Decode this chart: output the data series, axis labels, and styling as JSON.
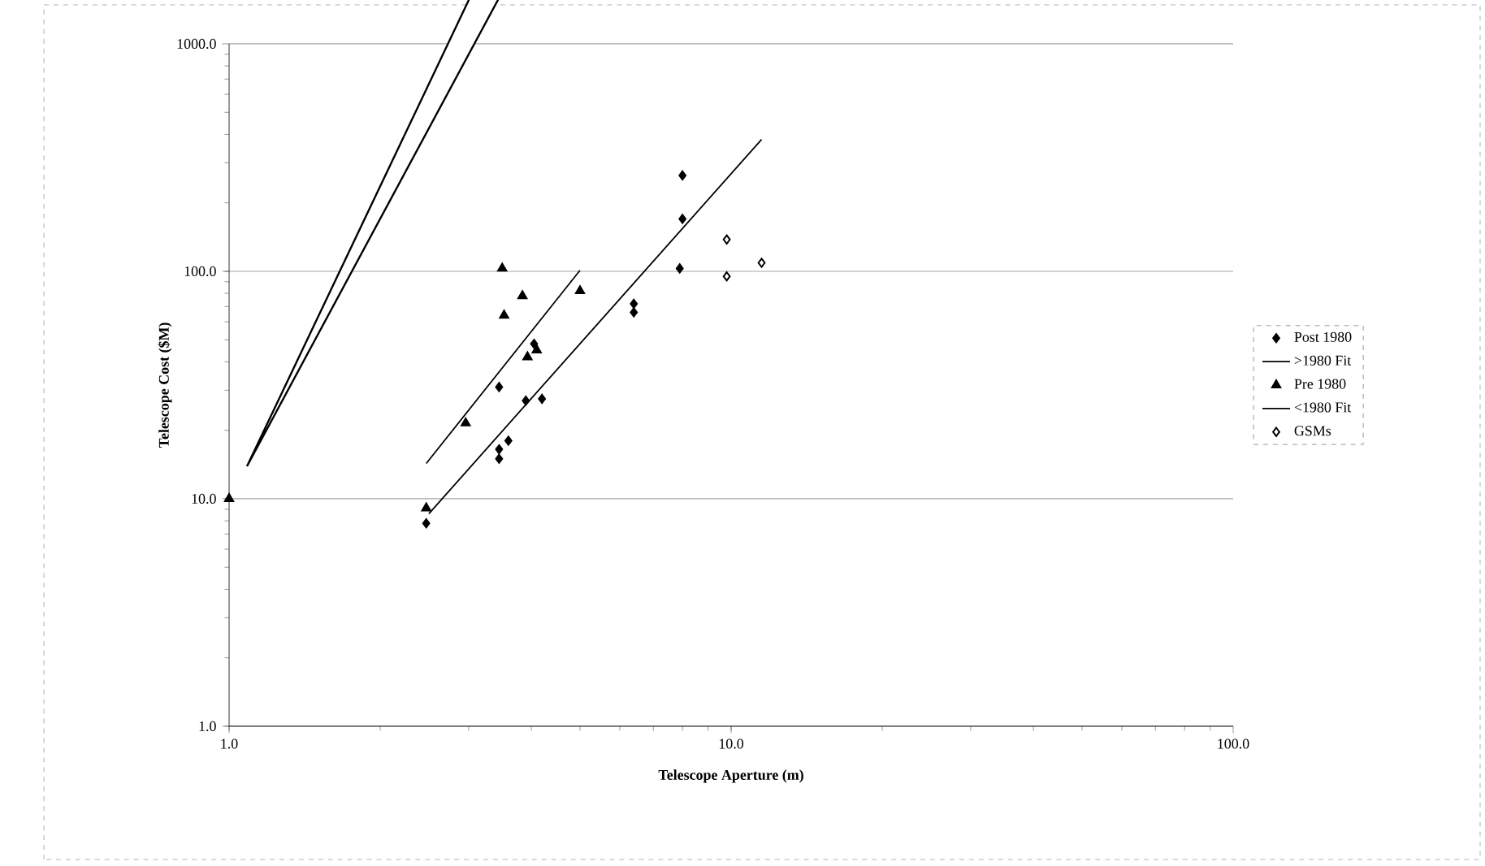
{
  "chart_data": {
    "type": "scatter",
    "xlabel": "Telescope Aperture (m)",
    "ylabel": "Telescope Cost ($M)",
    "log": "xy",
    "grid": "y",
    "legend": "right",
    "xlim": [
      1,
      100
    ],
    "ylim": [
      1,
      1000
    ],
    "xticks": [
      {
        "value": 1,
        "label": "1.0"
      },
      {
        "value": 10,
        "label": "10.0"
      },
      {
        "value": 100,
        "label": "100.0"
      }
    ],
    "yticks": [
      {
        "value": 1,
        "label": "1.0"
      },
      {
        "value": 10,
        "label": "10.0"
      },
      {
        "value": 100,
        "label": "100.0"
      },
      {
        "value": 1000,
        "label": "1000.0"
      }
    ],
    "series": [
      {
        "name": "Post 1980",
        "marker": "diamond",
        "color": "#000000",
        "x": [
          2.47,
          3.45,
          3.6,
          3.45,
          3.45,
          3.9,
          4.2,
          4.05,
          6.4,
          6.4,
          7.9,
          8.0,
          8.0
        ],
        "values": [
          7.8,
          31,
          18,
          16.5,
          15,
          27,
          27.5,
          48,
          72,
          66,
          103,
          170,
          264
        ]
      },
      {
        "name": ">1980 Fit",
        "type": "line",
        "marker": "none",
        "color": "#000000",
        "x": [
          2.5,
          11.5
        ],
        "values": [
          8.6,
          380
        ]
      },
      {
        "name": "Pre 1980",
        "marker": "triangle",
        "color": "#000000",
        "x": [
          1.0,
          2.47,
          2.96,
          3.5,
          3.53,
          3.84,
          3.93,
          4.1,
          5.0
        ],
        "values": [
          10,
          9.1,
          21.5,
          103,
          64,
          78,
          42,
          45,
          82
        ]
      },
      {
        "name": "<1980 Fit",
        "type": "line",
        "marker": "none",
        "color": "#000000",
        "x": [
          2.47,
          5.0
        ],
        "values": [
          14.3,
          101
        ]
      },
      {
        "name": "GSMs",
        "marker": "diamond",
        "color": "#ffffff",
        "x": [
          9.8,
          9.8,
          11.5
        ],
        "values": [
          138,
          95,
          109
        ]
      }
    ]
  }
}
